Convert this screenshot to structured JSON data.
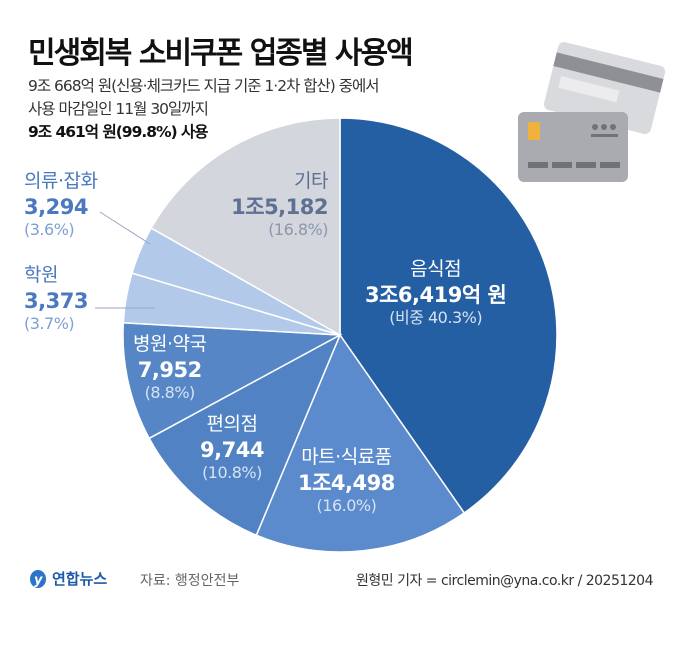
{
  "header": {
    "title": "민생회복 소비쿠폰 업종별 사용액",
    "subtitle_line1": "9조 668억 원(신용·체크카드 지급 기준 1·2차 합산) 중에서",
    "subtitle_line2": "사용 마감일인 11월 30일까지",
    "subtitle_line3": "9조 461억 원(99.8%) 사용"
  },
  "chart_data": {
    "type": "pie",
    "start": "12 o'clock, clockwise",
    "slices": [
      {
        "name": "음식점",
        "value_label": "3조6,419억 원",
        "pct_label": "(비중 40.3%)",
        "percent": 40.3,
        "color": "#245ea3"
      },
      {
        "name": "마트·식료품",
        "value_label": "1조4,498",
        "pct_label": "(16.0%)",
        "percent": 16.0,
        "color": "#5b8bcc"
      },
      {
        "name": "편의점",
        "value_label": "9,744",
        "pct_label": "(10.8%)",
        "percent": 10.8,
        "color": "#5182c3"
      },
      {
        "name": "병원·약국",
        "value_label": "7,952",
        "pct_label": "(8.8%)",
        "percent": 8.8,
        "color": "#5686c6"
      },
      {
        "name": "학원",
        "value_label": "3,373",
        "pct_label": "(3.7%)",
        "percent": 3.7,
        "color": "#b2c9ea"
      },
      {
        "name": "의류·잡화",
        "value_label": "3,294",
        "pct_label": "(3.6%)",
        "percent": 3.6,
        "color": "#b2c9ea"
      },
      {
        "name": "기타",
        "value_label": "1조5,182",
        "pct_label": "(16.8%)",
        "percent": 16.8,
        "color": "#d3d6dc"
      }
    ]
  },
  "footer": {
    "logo_text": "연합뉴스",
    "source": "자료: 행정안전부",
    "credit": "원형민 기자 = circlemin@yna.co.kr / 20251204"
  }
}
